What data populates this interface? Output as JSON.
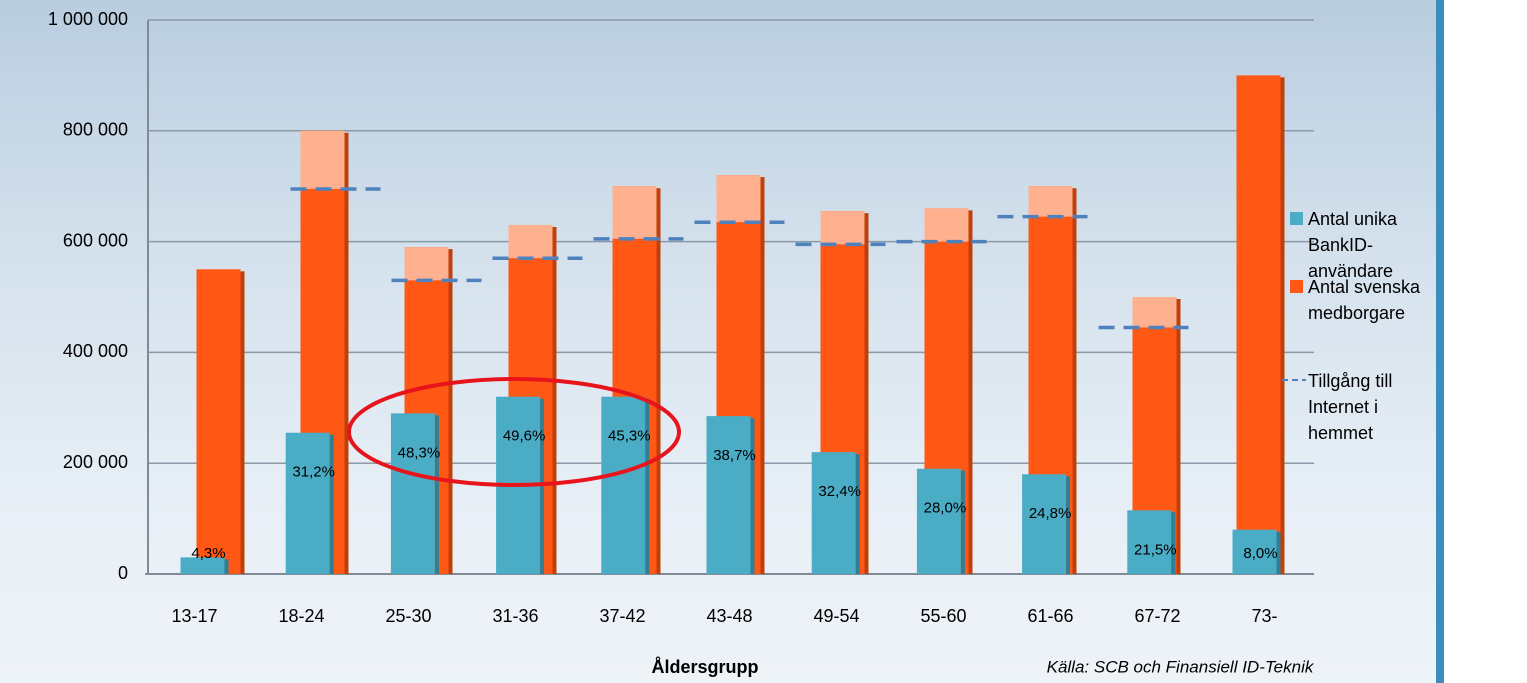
{
  "chart_data": {
    "type": "bar",
    "x_label": "Åldersgrupp",
    "source": "Källa: SCB och Finansiell ID-Teknik",
    "categories": [
      "13-17",
      "18-24",
      "25-30",
      "31-36",
      "37-42",
      "43-48",
      "49-54",
      "55-60",
      "61-66",
      "67-72",
      "73-"
    ],
    "series": [
      {
        "name": "Antal unika BankID-användare",
        "color": "#4bacc6",
        "values": [
          30000,
          255000,
          290000,
          320000,
          320000,
          285000,
          220000,
          190000,
          180000,
          115000,
          80000
        ]
      },
      {
        "name": "Antal svenska medborgare",
        "color": "#ff5714",
        "values": [
          550000,
          800000,
          590000,
          630000,
          700000,
          720000,
          655000,
          660000,
          700000,
          500000,
          900000
        ]
      },
      {
        "name": "Tillgång till Internet i hemmet",
        "color": "#4f81bd",
        "values": [
          null,
          695000,
          530000,
          570000,
          605000,
          635000,
          595000,
          600000,
          645000,
          445000,
          null
        ]
      }
    ],
    "shares": {
      "values": [
        4.3,
        31.2,
        48.3,
        49.6,
        45.3,
        38.7,
        32.4,
        28.0,
        24.8,
        21.5,
        8.0
      ],
      "value_labels": [
        "4,3%",
        "31,2%",
        "48,3%",
        "49,6%",
        "45,3%",
        "38,7%",
        "32,4%",
        "28,0%",
        "24,8%",
        "21,5%",
        "8,0%"
      ]
    },
    "ylim": [
      0,
      1000000
    ],
    "yticks": [
      0,
      {
        "value": 200000,
        "label": "200 000"
      },
      {
        "value": 400000,
        "label": "400 000"
      },
      {
        "value": 600000,
        "label": "600 000"
      },
      {
        "value": 800000,
        "label": "800 000"
      },
      {
        "value": 1000000,
        "label": "1 000 000"
      }
    ],
    "grid": true
  }
}
